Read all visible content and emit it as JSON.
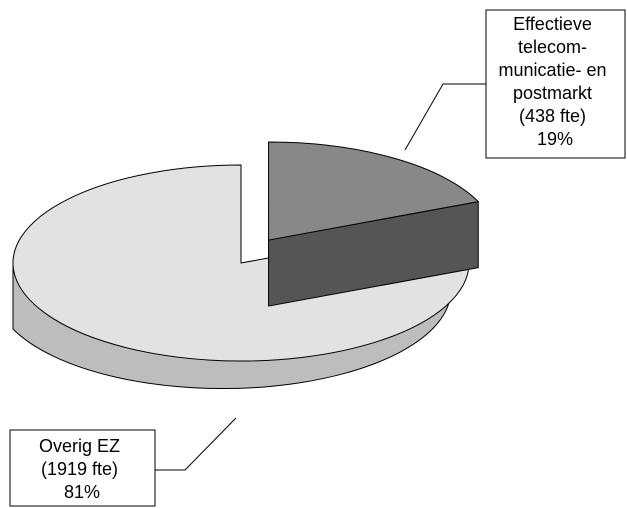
{
  "chart_data": {
    "type": "pie",
    "style": "3d-exploded",
    "title": "",
    "slices": [
      {
        "label_lines": [
          "Effectieve",
          "telecom-",
          "municatie- en",
          "postmarkt",
          "(438 fte)",
          "19%"
        ],
        "value_fte": 438,
        "percent": 19,
        "exploded": true,
        "top_color": "#888888",
        "side_color": "#555555"
      },
      {
        "label_lines": [
          "Overig EZ",
          "(1919 fte)",
          "81%"
        ],
        "value_fte": 1919,
        "percent": 81,
        "exploded": false,
        "top_color": "#e2e2e2",
        "side_color": "#bdbdbd"
      }
    ]
  }
}
